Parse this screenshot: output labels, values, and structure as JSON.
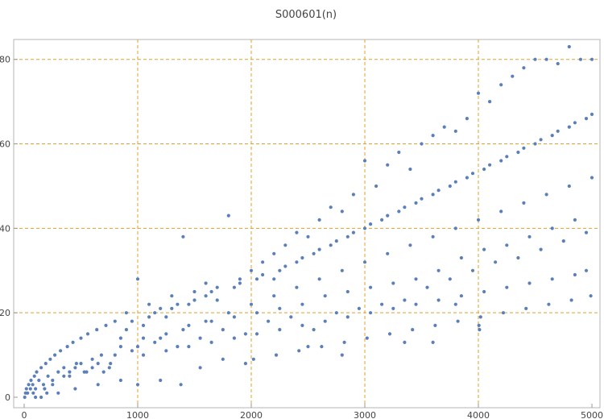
{
  "chart_data": {
    "type": "scatter",
    "title": "S000601(n)",
    "xlabel": "",
    "ylabel": "",
    "xlim": [
      0,
      5000
    ],
    "ylim": [
      0,
      83
    ],
    "x_ticks": [
      "0",
      "1000",
      "2000",
      "3000",
      "4000",
      "5000"
    ],
    "y_ticks": [
      "0",
      "20",
      "40",
      "60",
      "80"
    ],
    "x_tick_values": [
      0,
      1000,
      2000,
      3000,
      4000,
      5000
    ],
    "y_tick_values": [
      0,
      20,
      40,
      60,
      80
    ],
    "grid": true,
    "colors": {
      "point": "#5b7fb9",
      "grid": "#e3a02a",
      "frame": "#b5b5b5",
      "text": "#444444"
    },
    "series": [
      {
        "points": [
          [
            5,
            0
          ],
          [
            12,
            1
          ],
          [
            20,
            2
          ],
          [
            30,
            1
          ],
          [
            40,
            3
          ],
          [
            55,
            2
          ],
          [
            60,
            4
          ],
          [
            75,
            3
          ],
          [
            90,
            5
          ],
          [
            100,
            2
          ],
          [
            110,
            6
          ],
          [
            130,
            4
          ],
          [
            150,
            7
          ],
          [
            170,
            3
          ],
          [
            190,
            8
          ],
          [
            210,
            5
          ],
          [
            230,
            9
          ],
          [
            250,
            4
          ],
          [
            270,
            10
          ],
          [
            300,
            6
          ],
          [
            320,
            11
          ],
          [
            350,
            7
          ],
          [
            380,
            12
          ],
          [
            400,
            5
          ],
          [
            430,
            13
          ],
          [
            460,
            8
          ],
          [
            500,
            14
          ],
          [
            530,
            6
          ],
          [
            560,
            15
          ],
          [
            600,
            9
          ],
          [
            640,
            16
          ],
          [
            680,
            10
          ],
          [
            720,
            17
          ],
          [
            760,
            8
          ],
          [
            800,
            18
          ],
          [
            850,
            12
          ],
          [
            900,
            20
          ],
          [
            950,
            11
          ],
          [
            1000,
            28
          ],
          [
            1050,
            14
          ],
          [
            1100,
            22
          ],
          [
            1150,
            13
          ],
          [
            1200,
            21
          ],
          [
            1250,
            15
          ],
          [
            1300,
            24
          ],
          [
            1350,
            12
          ],
          [
            1400,
            38
          ],
          [
            1450,
            17
          ],
          [
            1500,
            25
          ],
          [
            1550,
            14
          ],
          [
            1600,
            27
          ],
          [
            1650,
            18
          ],
          [
            1700,
            26
          ],
          [
            1750,
            16
          ],
          [
            1800,
            43
          ],
          [
            1850,
            19
          ],
          [
            1900,
            28
          ],
          [
            1950,
            15
          ],
          [
            2000,
            30
          ],
          [
            2050,
            20
          ],
          [
            2100,
            32
          ],
          [
            2150,
            18
          ],
          [
            2200,
            34
          ],
          [
            2250,
            21
          ],
          [
            2300,
            36
          ],
          [
            2350,
            19
          ],
          [
            2400,
            39
          ],
          [
            2450,
            22
          ],
          [
            2500,
            38
          ],
          [
            2550,
            16
          ],
          [
            2600,
            42
          ],
          [
            2650,
            24
          ],
          [
            2700,
            45
          ],
          [
            2750,
            20
          ],
          [
            2800,
            44
          ],
          [
            2850,
            25
          ],
          [
            2900,
            48
          ],
          [
            2950,
            21
          ],
          [
            3000,
            56
          ],
          [
            3050,
            26
          ],
          [
            3100,
            50
          ],
          [
            3150,
            22
          ],
          [
            3200,
            55
          ],
          [
            3250,
            27
          ],
          [
            3300,
            58
          ],
          [
            3350,
            23
          ],
          [
            3400,
            54
          ],
          [
            3450,
            28
          ],
          [
            3500,
            60
          ],
          [
            3550,
            26
          ],
          [
            3600,
            62
          ],
          [
            3650,
            30
          ],
          [
            3700,
            64
          ],
          [
            3750,
            28
          ],
          [
            3800,
            63
          ],
          [
            3850,
            33
          ],
          [
            3900,
            66
          ],
          [
            3950,
            30
          ],
          [
            4000,
            72
          ],
          [
            4050,
            35
          ],
          [
            4100,
            70
          ],
          [
            4150,
            32
          ],
          [
            4200,
            74
          ],
          [
            4250,
            36
          ],
          [
            4300,
            76
          ],
          [
            4350,
            33
          ],
          [
            4400,
            78
          ],
          [
            4450,
            38
          ],
          [
            4500,
            80
          ],
          [
            4550,
            35
          ],
          [
            4600,
            80
          ],
          [
            4650,
            40
          ],
          [
            4700,
            79
          ],
          [
            4750,
            37
          ],
          [
            4800,
            83
          ],
          [
            4850,
            42
          ],
          [
            4900,
            80
          ],
          [
            4950,
            39
          ],
          [
            5000,
            80
          ],
          [
            4010,
            16
          ],
          [
            4005,
            17
          ],
          [
            3800,
            22
          ],
          [
            3600,
            13
          ],
          [
            3350,
            13
          ],
          [
            2800,
            10
          ],
          [
            2500,
            12
          ],
          [
            1950,
            8
          ],
          [
            1750,
            9
          ],
          [
            1550,
            7
          ],
          [
            1380,
            3
          ],
          [
            1200,
            4
          ],
          [
            1000,
            3
          ],
          [
            850,
            4
          ],
          [
            650,
            3
          ],
          [
            450,
            2
          ],
          [
            300,
            1
          ],
          [
            150,
            0
          ],
          [
            200,
            1
          ],
          [
            100,
            0
          ],
          [
            800,
            10
          ],
          [
            850,
            14
          ],
          [
            900,
            16
          ],
          [
            950,
            18
          ],
          [
            1050,
            17
          ],
          [
            1100,
            19
          ],
          [
            1150,
            20
          ],
          [
            1250,
            19
          ],
          [
            1300,
            21
          ],
          [
            1350,
            22
          ],
          [
            1450,
            22
          ],
          [
            1500,
            23
          ],
          [
            1600,
            24
          ],
          [
            1650,
            25
          ],
          [
            1700,
            23
          ],
          [
            1850,
            26
          ],
          [
            1900,
            27
          ],
          [
            2050,
            28
          ],
          [
            2100,
            29
          ],
          [
            2200,
            28
          ],
          [
            2250,
            30
          ],
          [
            2300,
            31
          ],
          [
            2400,
            32
          ],
          [
            2450,
            33
          ],
          [
            2550,
            34
          ],
          [
            2600,
            35
          ],
          [
            2700,
            36
          ],
          [
            2750,
            37
          ],
          [
            2850,
            38
          ],
          [
            2900,
            39
          ],
          [
            3000,
            40
          ],
          [
            3050,
            41
          ],
          [
            3150,
            42
          ],
          [
            3200,
            43
          ],
          [
            3300,
            44
          ],
          [
            3350,
            45
          ],
          [
            3450,
            46
          ],
          [
            3500,
            47
          ],
          [
            3600,
            48
          ],
          [
            3650,
            49
          ],
          [
            3750,
            50
          ],
          [
            3800,
            51
          ],
          [
            3900,
            52
          ],
          [
            3950,
            53
          ],
          [
            4050,
            54
          ],
          [
            4100,
            55
          ],
          [
            4200,
            56
          ],
          [
            4250,
            57
          ],
          [
            4350,
            58
          ],
          [
            4400,
            59
          ],
          [
            4500,
            60
          ],
          [
            4550,
            61
          ],
          [
            4650,
            62
          ],
          [
            4700,
            63
          ],
          [
            4800,
            64
          ],
          [
            4850,
            65
          ],
          [
            4950,
            66
          ],
          [
            5000,
            67
          ],
          [
            1000,
            12
          ],
          [
            1200,
            14
          ],
          [
            1400,
            16
          ],
          [
            1600,
            18
          ],
          [
            1800,
            20
          ],
          [
            2000,
            22
          ],
          [
            2200,
            24
          ],
          [
            2400,
            26
          ],
          [
            2600,
            28
          ],
          [
            2800,
            30
          ],
          [
            3000,
            32
          ],
          [
            3200,
            34
          ],
          [
            3400,
            36
          ],
          [
            3600,
            38
          ],
          [
            3800,
            40
          ],
          [
            4000,
            42
          ],
          [
            4200,
            44
          ],
          [
            4400,
            46
          ],
          [
            4600,
            48
          ],
          [
            4800,
            50
          ],
          [
            5000,
            52
          ],
          [
            1050,
            10
          ],
          [
            1250,
            11
          ],
          [
            1450,
            12
          ],
          [
            1650,
            13
          ],
          [
            1850,
            14
          ],
          [
            2050,
            15
          ],
          [
            2250,
            16
          ],
          [
            2450,
            17
          ],
          [
            2650,
            18
          ],
          [
            2850,
            19
          ],
          [
            3050,
            20
          ],
          [
            3250,
            21
          ],
          [
            3450,
            22
          ],
          [
            3650,
            23
          ],
          [
            3850,
            24
          ],
          [
            4050,
            25
          ],
          [
            4250,
            26
          ],
          [
            4450,
            27
          ],
          [
            4650,
            28
          ],
          [
            4850,
            29
          ],
          [
            4950,
            30
          ],
          [
            2020,
            9
          ],
          [
            2220,
            10
          ],
          [
            2420,
            11
          ],
          [
            2620,
            12
          ],
          [
            2820,
            13
          ],
          [
            3020,
            14
          ],
          [
            3220,
            15
          ],
          [
            3420,
            16
          ],
          [
            3620,
            17
          ],
          [
            3820,
            18
          ],
          [
            4020,
            19
          ],
          [
            4220,
            20
          ],
          [
            4420,
            21
          ],
          [
            4620,
            22
          ],
          [
            4820,
            23
          ],
          [
            4990,
            24
          ],
          [
            700,
            6
          ],
          [
            750,
            7
          ],
          [
            650,
            8
          ],
          [
            600,
            7
          ],
          [
            550,
            6
          ],
          [
            500,
            8
          ],
          [
            450,
            7
          ],
          [
            400,
            6
          ],
          [
            350,
            5
          ],
          [
            250,
            3
          ],
          [
            180,
            2
          ],
          [
            80,
            1
          ]
        ]
      }
    ]
  }
}
